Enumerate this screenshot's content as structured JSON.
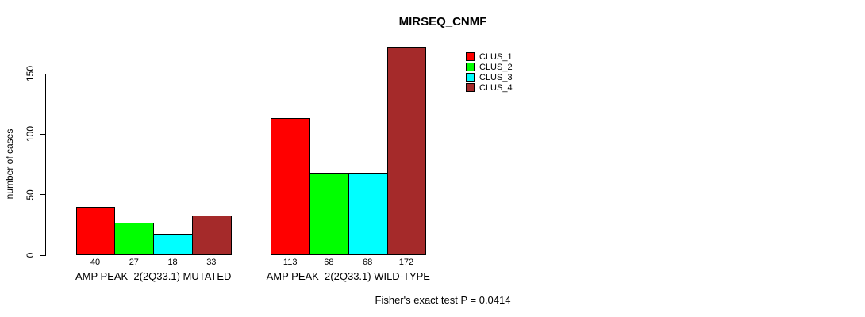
{
  "chart_data": {
    "type": "bar",
    "title": "MIRSEQ_CNMF",
    "ylabel": "number of cases",
    "ylim": [
      0,
      150
    ],
    "yticks": [
      0,
      50,
      100,
      150
    ],
    "grid": false,
    "legend_position": "top-right",
    "series": [
      {
        "name": "CLUS_1",
        "color": "#FF0000"
      },
      {
        "name": "CLUS_2",
        "color": "#00FF00"
      },
      {
        "name": "CLUS_3",
        "color": "#00FFFF"
      },
      {
        "name": "CLUS_4",
        "color": "#A52A2A"
      }
    ],
    "groups": [
      {
        "label": "AMP PEAK  2(2Q33.1) MUTATED",
        "values": [
          40,
          27,
          18,
          33
        ]
      },
      {
        "label": "AMP PEAK  2(2Q33.1) WILD-TYPE",
        "values": [
          113,
          68,
          68,
          172
        ]
      }
    ],
    "footnote": "Fisher's exact test P = 0.0414"
  }
}
